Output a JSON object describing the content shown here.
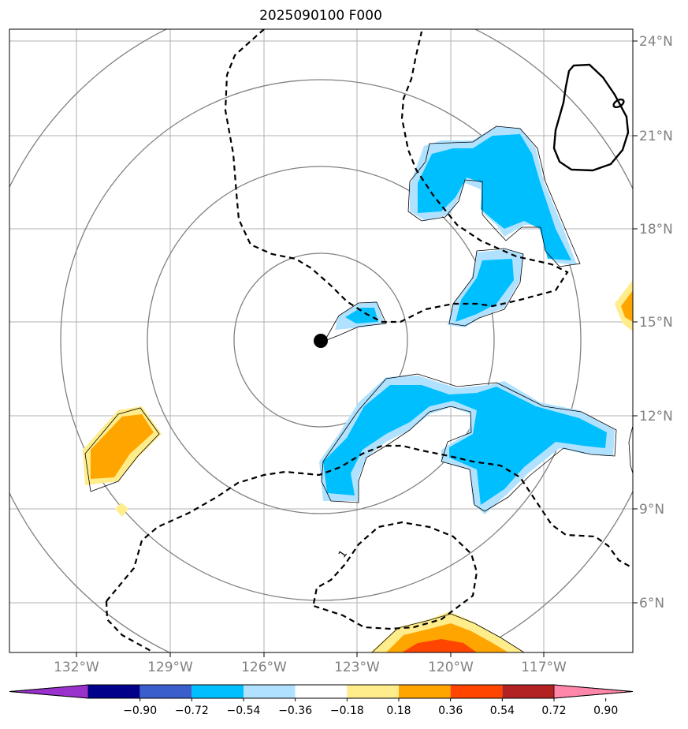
{
  "title": "2025090100 F000",
  "map": {
    "lat_ticks": [
      "24°N",
      "21°N",
      "18°N",
      "15°N",
      "12°N",
      "9°N",
      "6°N"
    ],
    "lon_ticks": [
      "132°W",
      "129°W",
      "126°W",
      "123°W",
      "120°W",
      "117°W"
    ],
    "center_marker": "storm-center",
    "contour_label": "1"
  },
  "colorbar": {
    "tick_labels": [
      "−0.90",
      "−0.72",
      "−0.54",
      "−0.36",
      "−0.18",
      "0.18",
      "0.36",
      "0.54",
      "0.72",
      "0.90"
    ],
    "colors": [
      "#9932cc",
      "#00008b",
      "#3a5fcd",
      "#00bfff",
      "#b0e2ff",
      "#ffffff",
      "#ffec8b",
      "#ffa500",
      "#ff4500",
      "#b22222",
      "#ff88aa"
    ]
  }
}
